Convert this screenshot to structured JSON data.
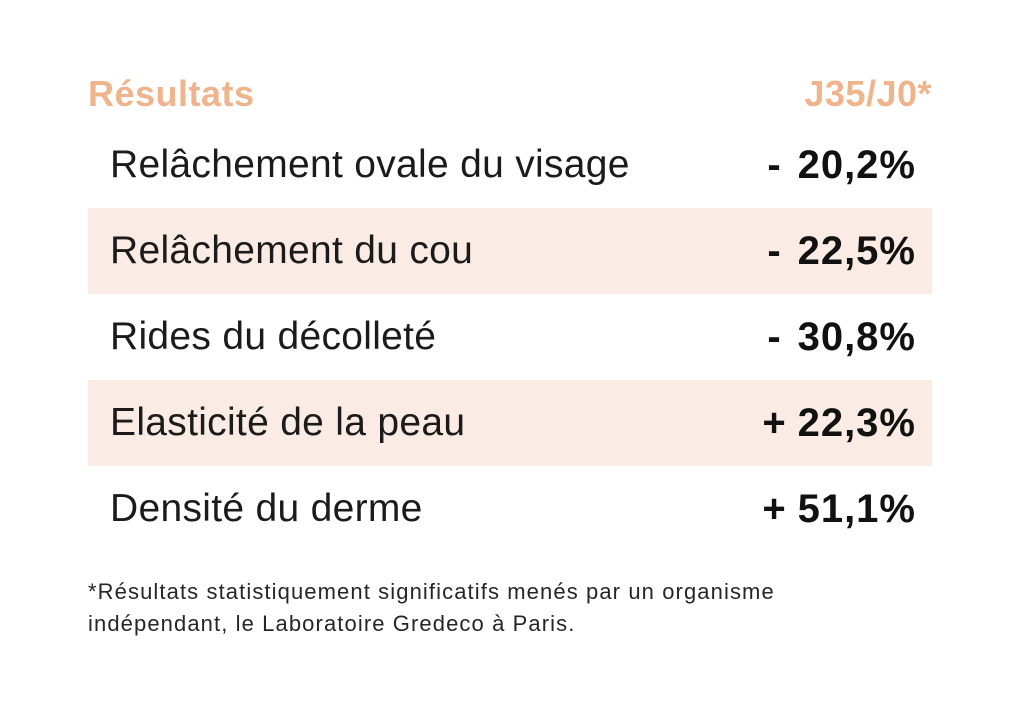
{
  "colors": {
    "accent": "#F0B48C",
    "band": "#FAECE4",
    "text": "#1b1b1b"
  },
  "header": {
    "title": "Résultats",
    "period": "J35/J0*"
  },
  "table": {
    "rows": [
      {
        "label": "Relâchement ovale du visage",
        "sign": "-",
        "value": "20,2%",
        "highlighted": false
      },
      {
        "label": "Relâchement du cou",
        "sign": "-",
        "value": "22,5%",
        "highlighted": true
      },
      {
        "label": "Rides du décolleté",
        "sign": "-",
        "value": "30,8%",
        "highlighted": false
      },
      {
        "label": "Elasticité de la peau",
        "sign": "+",
        "value": "22,3%",
        "highlighted": true
      },
      {
        "label": "Densité du derme",
        "sign": "+",
        "value": "51,1%",
        "highlighted": false
      }
    ]
  },
  "footnote": {
    "line1": "*Résultats statistiquement significatifs menés par un organisme",
    "line2": "indépendant, le Laboratoire Gredeco à Paris."
  },
  "chart_data": {
    "type": "table",
    "title": "Résultats",
    "columns": [
      "Résultats",
      "J35/J0*"
    ],
    "categories": [
      "Relâchement ovale du visage",
      "Relâchement du cou",
      "Rides du décolleté",
      "Elasticité de la peau",
      "Densité du derme"
    ],
    "values": [
      -20.2,
      -22.5,
      -30.8,
      22.3,
      51.1
    ],
    "value_labels": [
      "- 20,2%",
      "- 22,5%",
      "- 30,8%",
      "+ 22,3%",
      "+ 51,1%"
    ],
    "highlighted_rows": [
      "Relâchement du cou",
      "Elasticité de la peau"
    ],
    "footnote": "*Résultats statistiquement significatifs menés par un organisme indépendant, le Laboratoire Gredeco à Paris."
  }
}
